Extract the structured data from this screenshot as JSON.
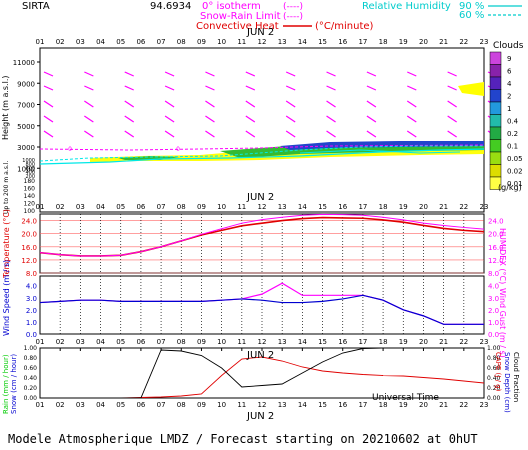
{
  "header": {
    "site": "SIRTA",
    "code": "94.6934",
    "legend_isotherm": "0° isotherm",
    "legend_isotherm_sym": "(----)",
    "legend_snowrain": "Snow-Rain Limit",
    "legend_snowrain_sym": "(----)",
    "legend_convective": "Convective Heat",
    "legend_convective_unit": "(°C/minute)",
    "legend_rh": "Relative Humidity",
    "legend_rh_90": "90 %",
    "legend_rh_60": "60 %"
  },
  "hours": [
    "01",
    "02",
    "03",
    "04",
    "05",
    "06",
    "07",
    "08",
    "09",
    "10",
    "11",
    "12",
    "13",
    "14",
    "15",
    "16",
    "17",
    "18",
    "19",
    "20",
    "21",
    "22",
    "23"
  ],
  "date_label": "JUN 2",
  "footer": {
    "universal_time": "Universal Time",
    "date": "JUN 2",
    "title": "Modele Atmospherique LMDZ / Forecast starting on 20210602 at 0hUT"
  },
  "colors": {
    "magenta": "#ff00ff",
    "cyan": "#00e8e8",
    "red": "#e00000",
    "blue": "#0000d0",
    "green": "#00cc00",
    "grid": "#000000"
  },
  "chart_data": [
    {
      "type": "heatmap",
      "panel": "upper-air",
      "ylabel": "Height (m a.s.l.)",
      "ylabel_low": "Up to 200 m a.s.l.",
      "y_ticks_high": [
        11000,
        9000,
        7000,
        5000,
        3000,
        1000
      ],
      "y_ticks_mid": [
        1000,
        800,
        600,
        400,
        200
      ],
      "y_ticks_low": [
        180,
        160,
        140,
        120,
        100
      ],
      "isotherm_label": "0",
      "clouds": {
        "title": "Clouds",
        "unit": "(g/kg)",
        "scale": [
          "9",
          "6",
          "4",
          "2",
          "1",
          "0.4",
          "0.2",
          "0.1",
          "0.05",
          "0.02",
          "0.01"
        ],
        "scale_colors": [
          "#cc44dd",
          "#8822aa",
          "#5522bb",
          "#2244cc",
          "#2299dd",
          "#22bbaa",
          "#22aa44",
          "#44cc22",
          "#99dd11",
          "#dddd00",
          "#ffff44"
        ]
      }
    },
    {
      "type": "line",
      "panel": "temperature",
      "ylabel": "Temperature (°C)",
      "ylabel_right": "HUMIDEX (°C)",
      "y_ticks": [
        "24.0",
        "20.0",
        "16.0",
        "12.0",
        "8.0"
      ],
      "ylim": [
        8,
        26
      ],
      "x": [
        1,
        2,
        3,
        4,
        5,
        6,
        7,
        8,
        9,
        10,
        11,
        12,
        13,
        14,
        15,
        16,
        17,
        18,
        19,
        20,
        21,
        22,
        23
      ],
      "series": [
        {
          "values": [
            14.2,
            13.6,
            13.2,
            13.2,
            13.4,
            14.5,
            16.0,
            17.8,
            19.6,
            21.0,
            22.4,
            23.2,
            24.0,
            24.6,
            24.9,
            24.8,
            24.7,
            24.2,
            23.5,
            22.5,
            21.6,
            21.0,
            20.6
          ]
        },
        {
          "values": [
            14.2,
            13.6,
            13.2,
            13.2,
            13.4,
            14.5,
            16.0,
            17.8,
            19.8,
            21.5,
            23.2,
            24.3,
            25.0,
            25.6,
            25.9,
            25.8,
            25.6,
            25.0,
            24.2,
            23.2,
            22.5,
            21.9,
            21.4
          ]
        }
      ]
    },
    {
      "type": "line",
      "panel": "wind",
      "ylabel": "Wind Speed (m / s)",
      "ylabel_right": "Wind Gust (m / s)",
      "y_ticks": [
        "4.0",
        "3.0",
        "2.0",
        "1.0",
        "0.0"
      ],
      "ylim": [
        0,
        4.8
      ],
      "x": [
        1,
        2,
        3,
        4,
        5,
        6,
        7,
        8,
        9,
        10,
        11,
        12,
        13,
        14,
        15,
        16,
        17,
        18,
        19,
        20,
        21,
        22,
        23
      ],
      "series": [
        {
          "values": [
            2.6,
            2.7,
            2.8,
            2.8,
            2.7,
            2.7,
            2.7,
            2.7,
            2.7,
            2.8,
            2.9,
            2.8,
            2.6,
            2.6,
            2.7,
            2.9,
            3.2,
            2.8,
            2.0,
            1.5,
            0.8,
            0.8,
            0.8
          ]
        },
        {
          "values": [
            2.6,
            2.7,
            2.8,
            2.8,
            2.7,
            2.7,
            2.7,
            2.7,
            2.7,
            2.8,
            2.9,
            3.3,
            4.2,
            3.2,
            3.2,
            3.2,
            3.2,
            2.8,
            2.0,
            1.5,
            0.8,
            0.8,
            0.8
          ]
        }
      ]
    },
    {
      "type": "line",
      "panel": "precipitation",
      "ylabel": "Rain (mm / hour)",
      "ylabel_2": "Snow (cm / hour)",
      "ylabel_right": "CAPE (J / g)",
      "ylabel_right_2": "Snow Depth (cm)",
      "ylabel_right_3": "Cloud Fraction",
      "y_ticks": [
        "1.00",
        "0.80",
        "0.60",
        "0.40",
        "0.20",
        "0.00"
      ],
      "ylim": [
        0,
        1.0
      ],
      "x": [
        1,
        2,
        3,
        4,
        5,
        6,
        7,
        8,
        9,
        10,
        11,
        12,
        13,
        14,
        15,
        16,
        17,
        18,
        19,
        20,
        21,
        22,
        23
      ],
      "series": [
        {
          "values": [
            0,
            0,
            0,
            0,
            0,
            0.01,
            0.02,
            0.04,
            0.08,
            0.45,
            0.78,
            0.82,
            0.74,
            0.62,
            0.54,
            0.5,
            0.47,
            0.45,
            0.44,
            0.41,
            0.38,
            0.34,
            0.3
          ]
        },
        {
          "values": [
            0,
            0,
            0,
            0,
            0,
            0,
            0.96,
            0.94,
            0.85,
            0.6,
            0.22,
            0.25,
            0.28,
            0.5,
            0.72,
            0.9,
            0.99,
            1.0,
            1.0,
            1.0,
            1.0,
            1.0,
            1.0
          ]
        }
      ]
    }
  ]
}
